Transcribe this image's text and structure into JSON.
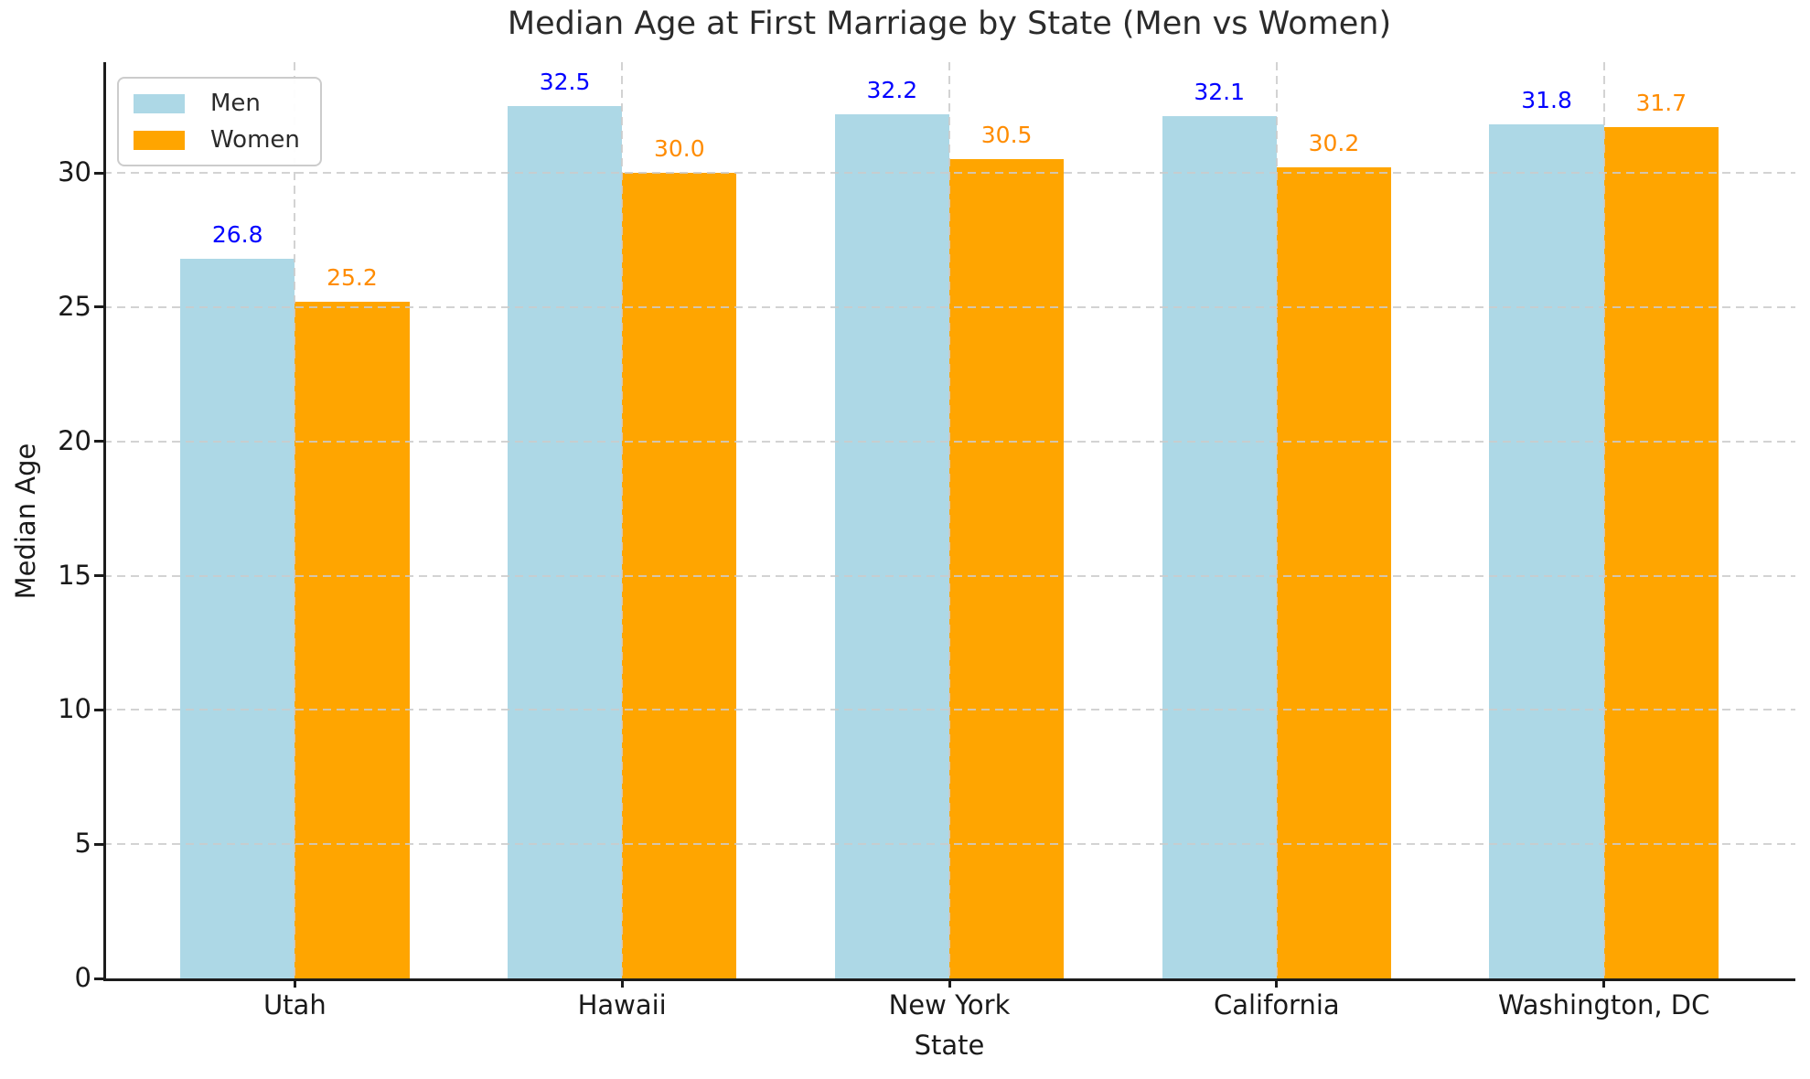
{
  "chart_data": {
    "type": "bar",
    "title": "Median Age at First Marriage by State (Men vs Women)",
    "xlabel": "State",
    "ylabel": "Median Age",
    "categories": [
      "Utah",
      "Hawaii",
      "New York",
      "California",
      "Washington, DC"
    ],
    "series": [
      {
        "name": "Men",
        "color": "#ADD8E6",
        "label_color": "#0000FF",
        "values": [
          26.8,
          32.5,
          32.2,
          32.1,
          31.8
        ]
      },
      {
        "name": "Women",
        "color": "#FFA500",
        "label_color": "#FF8C00",
        "values": [
          25.2,
          30.0,
          30.5,
          30.2,
          31.7
        ]
      }
    ],
    "value_label_decimals": 1,
    "yticks": [
      0,
      5,
      10,
      15,
      20,
      25,
      30
    ],
    "ylim": [
      0,
      34.125
    ],
    "bar_width_fraction": 0.35,
    "grid": true,
    "grid_style": "dashed",
    "grid_above_bars": true,
    "legend_position": "upper left",
    "colors": {
      "grid": "#CBCBCB",
      "spine": "#1C1C1C",
      "title_text": "#2B2B2B",
      "tick_text": "#1A1A1A"
    }
  }
}
